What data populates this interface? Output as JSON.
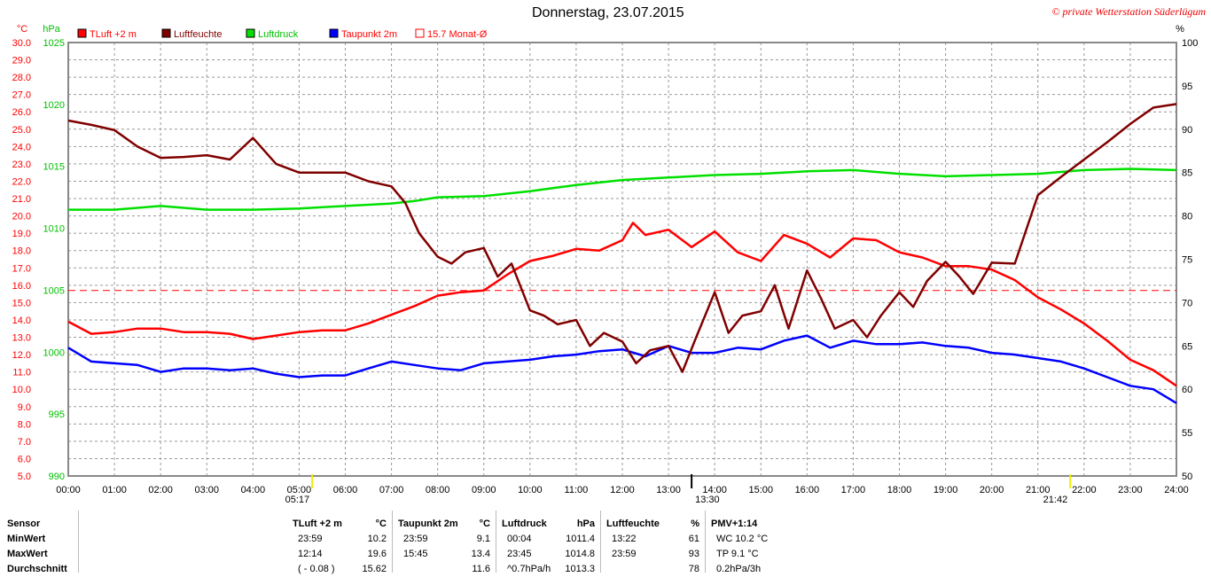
{
  "title": "Donnerstag, 23.07.2015",
  "copyright": "© private Wetterstation Süderlügum",
  "chart_data": {
    "type": "line",
    "title": "Donnerstag, 23.07.2015",
    "axes": {
      "left_temp": {
        "unit": "°C",
        "range": [
          5,
          30
        ]
      },
      "left_pressure": {
        "unit": "hPa",
        "range": [
          990,
          1025
        ]
      },
      "right_humidity": {
        "unit": "%",
        "range": [
          50,
          100
        ]
      },
      "x": {
        "unit": "hours",
        "range": [
          0,
          24
        ]
      }
    },
    "x_ticks": [
      "00:00",
      "01:00",
      "02:00",
      "03:00",
      "04:00",
      "05:00",
      "06:00",
      "07:00",
      "08:00",
      "09:00",
      "10:00",
      "11:00",
      "12:00",
      "13:00",
      "14:00",
      "15:00",
      "16:00",
      "17:00",
      "18:00",
      "19:00",
      "20:00",
      "21:00",
      "22:00",
      "23:00",
      "24:00"
    ],
    "temp_ticks": [
      "5.0",
      "6.0",
      "7.0",
      "8.0",
      "9.0",
      "10.0",
      "11.0",
      "12.0",
      "13.0",
      "14.0",
      "15.0",
      "16.0",
      "17.0",
      "18.0",
      "19.0",
      "20.0",
      "21.0",
      "22.0",
      "23.0",
      "24.0",
      "25.0",
      "26.0",
      "27.0",
      "28.0",
      "29.0",
      "30.0"
    ],
    "pressure_ticks": [
      "990",
      "995",
      "1000",
      "1005",
      "1010",
      "1015",
      "1020",
      "1025"
    ],
    "humidity_ticks": [
      "50",
      "55",
      "60",
      "65",
      "70",
      "75",
      "80",
      "85",
      "90",
      "95",
      "100"
    ],
    "legend": [
      {
        "label": "TLuft +2 m",
        "color": "#ff0000",
        "text_color": "#ff0000"
      },
      {
        "label": "Luftfeuchte",
        "color": "#800000",
        "text_color": "#800000"
      },
      {
        "label": "Luftdruck",
        "color": "#00e000",
        "text_color": "#00c000"
      },
      {
        "label": "Taupunkt 2m",
        "color": "#0000ff",
        "text_color": "#ff0000"
      },
      {
        "label": "15.7 Monat-Ø",
        "color": "none",
        "text_color": "#ff0000"
      }
    ],
    "monthly_avg": 15.7,
    "markers": [
      {
        "label": "05:17",
        "hour": 5.283
      },
      {
        "label": "13:30",
        "hour": 13.5
      },
      {
        "label": "21:42",
        "hour": 21.7
      }
    ],
    "series": [
      {
        "name": "TLuft +2 m",
        "axis": "temp",
        "color": "#ff0000",
        "x": [
          0,
          0.5,
          1,
          1.5,
          2,
          2.5,
          3,
          3.5,
          4,
          4.5,
          5,
          5.5,
          6,
          6.5,
          7,
          7.5,
          8,
          8.5,
          9,
          9.5,
          10,
          10.5,
          11,
          11.5,
          12,
          12.23,
          12.5,
          13,
          13.5,
          14,
          14.5,
          15,
          15.5,
          16,
          16.5,
          17,
          17.5,
          18,
          18.5,
          19,
          19.5,
          20,
          20.5,
          21,
          21.5,
          22,
          22.5,
          23,
          23.5,
          24
        ],
        "values": [
          13.9,
          13.2,
          13.3,
          13.5,
          13.5,
          13.3,
          13.3,
          13.2,
          12.9,
          13.1,
          13.3,
          13.4,
          13.4,
          13.8,
          14.3,
          14.8,
          15.4,
          15.6,
          15.7,
          16.6,
          17.4,
          17.7,
          18.1,
          18.0,
          18.6,
          19.6,
          18.9,
          19.2,
          18.2,
          19.1,
          17.9,
          17.4,
          18.9,
          18.4,
          17.6,
          18.7,
          18.6,
          17.9,
          17.6,
          17.1,
          17.1,
          16.9,
          16.3,
          15.3,
          14.6,
          13.8,
          12.8,
          11.7,
          11.1,
          10.2
        ]
      },
      {
        "name": "Taupunkt 2m",
        "axis": "temp",
        "color": "#0000ff",
        "x": [
          0,
          0.5,
          1,
          1.5,
          2,
          2.5,
          3,
          3.5,
          4,
          4.5,
          5,
          5.5,
          6,
          6.5,
          7,
          7.5,
          8,
          8.5,
          9,
          9.5,
          10,
          10.5,
          11,
          11.5,
          12,
          12.5,
          13,
          13.5,
          14,
          14.5,
          15,
          15.5,
          16,
          16.5,
          17,
          17.5,
          18,
          18.5,
          19,
          19.5,
          20,
          20.5,
          21,
          21.5,
          22,
          22.5,
          23,
          23.5,
          24
        ],
        "values": [
          12.4,
          11.6,
          11.5,
          11.4,
          11.0,
          11.2,
          11.2,
          11.1,
          11.2,
          10.9,
          10.7,
          10.8,
          10.8,
          11.2,
          11.6,
          11.4,
          11.2,
          11.1,
          11.5,
          11.6,
          11.7,
          11.9,
          12.0,
          12.2,
          12.3,
          11.9,
          12.5,
          12.1,
          12.1,
          12.4,
          12.3,
          12.8,
          13.1,
          12.4,
          12.8,
          12.6,
          12.6,
          12.7,
          12.5,
          12.4,
          12.1,
          12.0,
          11.8,
          11.6,
          11.2,
          10.7,
          10.2,
          10.0,
          9.2
        ]
      },
      {
        "name": "Luftdruck",
        "axis": "pressure",
        "color": "#00e000",
        "x": [
          0,
          1,
          2,
          3,
          4,
          5,
          6,
          7,
          7.5,
          8,
          9,
          10,
          11,
          12,
          13,
          14,
          15,
          16,
          17,
          18,
          19,
          20,
          21,
          22,
          23,
          24
        ],
        "values": [
          1011.5,
          1011.5,
          1011.8,
          1011.5,
          1011.5,
          1011.6,
          1011.8,
          1012.0,
          1012.2,
          1012.5,
          1012.6,
          1013.0,
          1013.5,
          1013.9,
          1014.1,
          1014.3,
          1014.4,
          1014.6,
          1014.7,
          1014.4,
          1014.2,
          1014.3,
          1014.4,
          1014.7,
          1014.8,
          1014.7
        ]
      },
      {
        "name": "Luftfeuchte",
        "axis": "humidity",
        "color": "#800000",
        "x": [
          0,
          0.5,
          1,
          1.5,
          2,
          2.5,
          3,
          3.5,
          4,
          4.5,
          5,
          5.5,
          6,
          6.5,
          7,
          7.3,
          7.6,
          8,
          8.3,
          8.6,
          9,
          9.3,
          9.6,
          10,
          10.3,
          10.6,
          11,
          11.3,
          11.6,
          12,
          12.3,
          12.6,
          13,
          13.3,
          13.6,
          14,
          14.3,
          14.6,
          15,
          15.3,
          15.6,
          16,
          16.3,
          16.6,
          17,
          17.3,
          17.6,
          18,
          18.3,
          18.6,
          19,
          19.3,
          19.6,
          20,
          20.5,
          21,
          21.5,
          22,
          22.5,
          23,
          23.5,
          24
        ],
        "values": [
          91.0,
          90.5,
          89.9,
          88.0,
          86.7,
          86.8,
          87.0,
          86.5,
          89.0,
          86.0,
          85.0,
          85.0,
          85.0,
          84.0,
          83.4,
          81.5,
          78.0,
          75.3,
          74.5,
          75.8,
          76.3,
          73.0,
          74.5,
          69.1,
          68.5,
          67.5,
          68.0,
          65.0,
          66.5,
          65.5,
          63.0,
          64.5,
          65.0,
          62.0,
          66.0,
          71.2,
          66.5,
          68.5,
          69.0,
          72.0,
          67.0,
          73.7,
          70.5,
          67.0,
          68.0,
          66.0,
          68.5,
          71.2,
          69.5,
          72.5,
          74.7,
          73.0,
          71.0,
          74.6,
          74.5,
          82.4,
          84.5,
          86.5,
          88.5,
          90.6,
          92.5,
          92.9
        ]
      }
    ]
  },
  "table": {
    "headers": {
      "sensor": "Sensor",
      "t": "TLuft +2 m",
      "t_unit": "°C",
      "dp": "Taupunkt 2m",
      "dp_unit": "°C",
      "p": "Luftdruck",
      "p_unit": "hPa",
      "h": "Luftfeuchte",
      "h_unit": "%",
      "pmv": "PMV+1:14"
    },
    "rows": [
      {
        "label": "MinWert",
        "t_time": "23:59",
        "t_val": "10.2",
        "dp_time": "23:59",
        "dp_val": "9.1",
        "p_time": "00:04",
        "p_val": "1011.4",
        "h_time": "13:22",
        "h_val": "61",
        "pmv": "WC 10.2 °C"
      },
      {
        "label": "MaxWert",
        "t_time": "12:14",
        "t_val": "19.6",
        "dp_time": "15:45",
        "dp_val": "13.4",
        "p_time": "23:45",
        "p_val": "1014.8",
        "h_time": "23:59",
        "h_val": "93",
        "pmv": "TP 9.1 °C"
      },
      {
        "label": "Durchschnitt",
        "t_time": "( - 0.08 )",
        "t_val": "15.62",
        "dp_time": "",
        "dp_val": "11.6",
        "p_time": "^0.7hPa/h",
        "p_val": "1013.3",
        "h_time": "",
        "h_val": "78",
        "pmv": "0.2hPa/3h"
      }
    ]
  }
}
